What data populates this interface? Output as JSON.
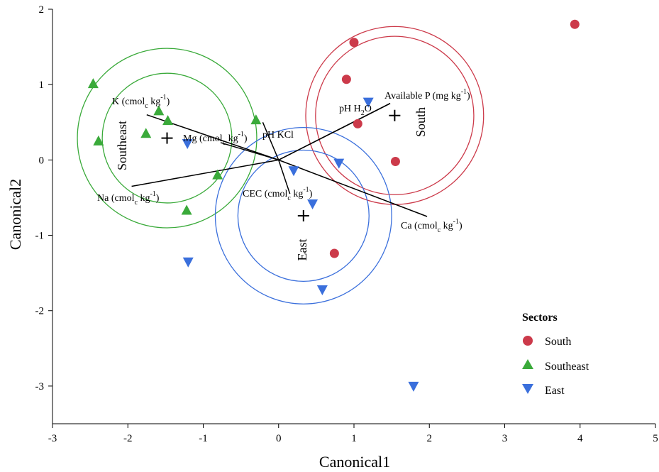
{
  "chart_data": {
    "type": "scatter",
    "xlabel": "Canonical1",
    "ylabel": "Canonical2",
    "xlim": [
      -3,
      5
    ],
    "ylim": [
      -3.5,
      2
    ],
    "xticks": [
      "-3",
      "-2",
      "-1",
      "0",
      "1",
      "2",
      "3",
      "4",
      "5"
    ],
    "yticks": [
      "2",
      "1",
      "0",
      "-1",
      "-2",
      "-3"
    ],
    "grid": false,
    "legend": {
      "title": "Sectors",
      "placement": "bottom-right"
    },
    "series": [
      {
        "name": "South",
        "marker": "circle",
        "color": "#cc3a4a",
        "points": [
          [
            3.93,
            1.8
          ],
          [
            1.0,
            1.56
          ],
          [
            0.9,
            1.07
          ],
          [
            1.05,
            0.48
          ],
          [
            1.55,
            -0.02
          ],
          [
            0.74,
            -1.24
          ]
        ],
        "centroid": [
          1.54,
          0.59
        ],
        "label": "South",
        "circles": [
          1.05,
          1.18
        ]
      },
      {
        "name": "Southeast",
        "marker": "triangle-up",
        "color": "#3aaa3a",
        "points": [
          [
            -2.46,
            1.01
          ],
          [
            -2.39,
            0.25
          ],
          [
            -1.76,
            0.35
          ],
          [
            -1.59,
            0.65
          ],
          [
            -1.47,
            0.52
          ],
          [
            -0.3,
            0.53
          ],
          [
            -0.81,
            -0.2
          ],
          [
            -1.22,
            -0.67
          ]
        ],
        "centroid": [
          -1.48,
          0.29
        ],
        "label": "Southeast",
        "circles": [
          0.86,
          1.19
        ]
      },
      {
        "name": "East",
        "marker": "triangle-down",
        "color": "#3a6fdc",
        "points": [
          [
            1.19,
            0.77
          ],
          [
            -1.21,
            0.22
          ],
          [
            0.2,
            -0.14
          ],
          [
            0.8,
            -0.04
          ],
          [
            0.45,
            -0.58
          ],
          [
            -1.2,
            -1.35
          ],
          [
            0.58,
            -1.72
          ],
          [
            1.79,
            -3.0
          ]
        ],
        "centroid": [
          0.33,
          -0.74
        ],
        "label": "East",
        "circles": [
          0.87,
          1.17
        ]
      }
    ],
    "vectors": [
      {
        "label": "K (cmolc kg-1)",
        "end": [
          -1.75,
          0.6
        ]
      },
      {
        "label": "Mg (cmolc kg-1)",
        "end": [
          -0.77,
          0.23
        ]
      },
      {
        "label": "pH KCl",
        "end": [
          -0.21,
          0.5
        ]
      },
      {
        "label": "pH H2O",
        "end": [
          1.48,
          0.75
        ]
      },
      {
        "label": "Available P (mg kg-1)",
        "end": [
          1.48,
          0.75
        ]
      },
      {
        "label": "Na (cmolc kg-1)",
        "end": [
          -1.95,
          -0.35
        ]
      },
      {
        "label": "CEC (cmolc kg-1)",
        "end": [
          0.15,
          -0.45
        ]
      },
      {
        "label": "Ca (cmolc kg-1)",
        "end": [
          1.97,
          -0.75
        ]
      }
    ]
  }
}
